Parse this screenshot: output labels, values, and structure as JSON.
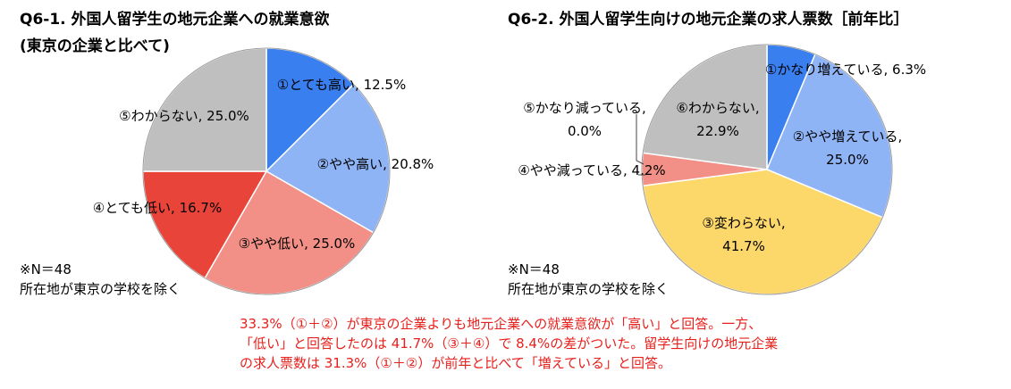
{
  "chart_data": [
    {
      "type": "pie",
      "title": "Q6-1. 外国人留学生の地元企業への就業意欲",
      "subtitle": "(東京の企業と比べて)",
      "slices": [
        {
          "label": "①とても高い",
          "value": 12.5,
          "display": "12.5%",
          "color": "#3a7ff0"
        },
        {
          "label": "②やや高い",
          "value": 20.8,
          "display": "20.8%",
          "color": "#8fb4f6"
        },
        {
          "label": "③やや低い",
          "value": 25.0,
          "display": "25.0%",
          "color": "#f28f86"
        },
        {
          "label": "④とても低い",
          "value": 16.7,
          "display": "16.7%",
          "color": "#e8443a"
        },
        {
          "label": "⑤わからない",
          "value": 25.0,
          "display": "25.0%",
          "color": "#bfbfbf"
        }
      ],
      "note": "※N＝48",
      "note2": "所在地が東京の学校を除く"
    },
    {
      "type": "pie",
      "title": "Q6-2. 外国人留学生向けの地元企業の求人票数［前年比］",
      "slices": [
        {
          "label": "①かなり増えている",
          "value": 6.3,
          "display": "6.3%",
          "color": "#3a7ff0"
        },
        {
          "label": "②やや増えている",
          "value": 25.0,
          "display": "25.0%",
          "color": "#8fb4f6"
        },
        {
          "label": "③変わらない",
          "value": 41.7,
          "display": "41.7%",
          "color": "#fcd76a"
        },
        {
          "label": "④やや減っている",
          "value": 4.2,
          "display": "4.2%",
          "color": "#f28f86"
        },
        {
          "label": "⑤かなり減っている",
          "value": 0.0,
          "display": "0.0%",
          "color": "#e8443a"
        },
        {
          "label": "⑥わからない",
          "value": 22.9,
          "display": "22.9%",
          "color": "#bfbfbf"
        }
      ],
      "note": "※N＝48",
      "note2": "所在地が東京の学校を除く"
    }
  ],
  "summary": {
    "line1": "33.3%（①＋②）が東京の企業よりも地元企業への就業意欲が「高い」と回答。一方、",
    "line2": "「低い」と回答したのは 41.7%（③＋④）で 8.4%の差がついた。留学生向けの地元企業",
    "line3": "の求人票数は 31.3%（①＋②）が前年と比べて「増えている」と回答。"
  }
}
